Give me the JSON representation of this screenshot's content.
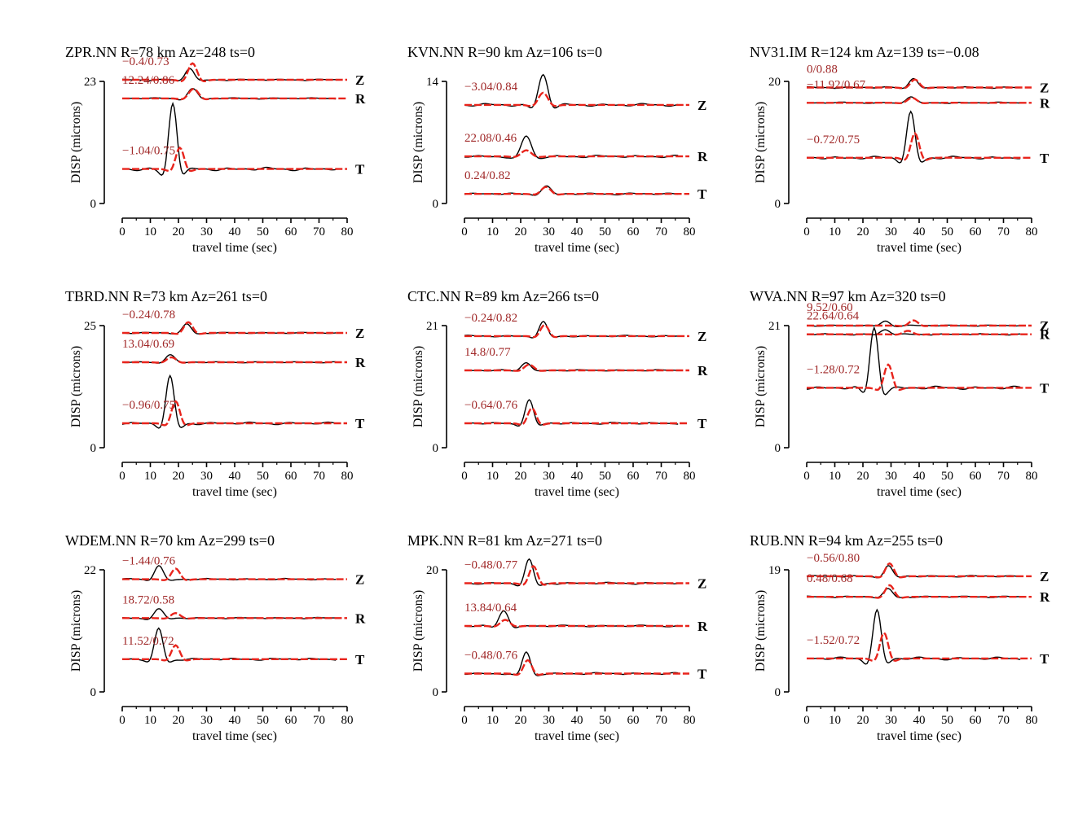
{
  "chart_data": [
    {
      "type": "line",
      "title": "ZPR.NN R=78 km Az=248 ts=0",
      "xlabel": "travel time (sec)",
      "ylabel": "DISP (microns)",
      "xlim": [
        0,
        80
      ],
      "xticks": [
        0,
        10,
        20,
        30,
        40,
        50,
        60,
        70,
        80
      ],
      "ylim": [
        0,
        23
      ],
      "yticks": [
        "0",
        "23"
      ],
      "series_colors": {
        "observed": "#000000",
        "synthetic": "#e8241c"
      },
      "traces": [
        {
          "component": "Z",
          "label": "−0.4/0.73",
          "baseline": 23.3,
          "peak_time": 24,
          "obs_amp": 2.2,
          "syn_amp": 3.1,
          "syn_shift": 1.0,
          "width": 3.2
        },
        {
          "component": "R",
          "label": "12.24/0.86",
          "baseline": 19.8,
          "peak_time": 25,
          "obs_amp": 1.8,
          "syn_amp": 1.8,
          "syn_shift": 0.4,
          "width": 3.5
        },
        {
          "component": "T",
          "label": "−1.04/0.75",
          "baseline": 6.5,
          "peak_time": 18,
          "obs_amp": 12.5,
          "syn_amp": 4.0,
          "syn_shift": 2.5,
          "width": 3.0
        }
      ]
    },
    {
      "type": "line",
      "title": "KVN.NN R=90 km Az=106 ts=0",
      "xlabel": "travel time (sec)",
      "ylabel": "DISP (microns)",
      "xlim": [
        0,
        80
      ],
      "xticks": [
        0,
        10,
        20,
        30,
        40,
        50,
        60,
        70,
        80
      ],
      "ylim": [
        0,
        14
      ],
      "yticks": [
        "0",
        "14"
      ],
      "series_colors": {
        "observed": "#000000",
        "synthetic": "#e8241c"
      },
      "traces": [
        {
          "component": "Z",
          "label": "−3.04/0.84",
          "baseline": 11.3,
          "peak_time": 28,
          "obs_amp": 3.5,
          "syn_amp": 1.4,
          "syn_shift": 0,
          "width": 3.4
        },
        {
          "component": "R",
          "label": "22.08/0.46",
          "baseline": 5.4,
          "peak_time": 22,
          "obs_amp": 2.3,
          "syn_amp": 0.7,
          "syn_shift": 0,
          "width": 3.6
        },
        {
          "component": "T",
          "label": "0.24/0.82",
          "baseline": 1.1,
          "peak_time": 29,
          "obs_amp": 0.9,
          "syn_amp": 0.8,
          "syn_shift": 0,
          "width": 3.4
        }
      ]
    },
    {
      "type": "line",
      "title": "NV31.IM R=124 km Az=139 ts=−0.08",
      "xlabel": "travel time (sec)",
      "ylabel": "DISP (microns)",
      "xlim": [
        0,
        80
      ],
      "xticks": [
        0,
        10,
        20,
        30,
        40,
        50,
        60,
        70,
        80
      ],
      "ylim": [
        0,
        20
      ],
      "yticks": [
        "0",
        "20"
      ],
      "series_colors": {
        "observed": "#000000",
        "synthetic": "#e8241c"
      },
      "traces": [
        {
          "component": "Z",
          "label": "0/0.88",
          "baseline": 19.0,
          "peak_time": 38,
          "obs_amp": 1.6,
          "syn_amp": 1.3,
          "syn_shift": 0.5,
          "width": 3.2
        },
        {
          "component": "R",
          "label": "−11.92/0.67",
          "baseline": 16.5,
          "peak_time": 37,
          "obs_amp": 1.0,
          "syn_amp": 0.8,
          "syn_shift": 0.5,
          "width": 3.4
        },
        {
          "component": "T",
          "label": "−0.72/0.75",
          "baseline": 7.5,
          "peak_time": 37,
          "obs_amp": 7.5,
          "syn_amp": 4.0,
          "syn_shift": 1.5,
          "width": 3.0
        }
      ]
    },
    {
      "type": "line",
      "title": "TBRD.NN R=73 km Az=261 ts=0",
      "xlabel": "travel time (sec)",
      "ylabel": "DISP (microns)",
      "xlim": [
        0,
        80
      ],
      "xticks": [
        0,
        10,
        20,
        30,
        40,
        50,
        60,
        70,
        80
      ],
      "ylim": [
        0,
        25
      ],
      "yticks": [
        "0",
        "25"
      ],
      "series_colors": {
        "observed": "#000000",
        "synthetic": "#e8241c"
      },
      "traces": [
        {
          "component": "Z",
          "label": "−0.24/0.78",
          "baseline": 23.5,
          "peak_time": 23,
          "obs_amp": 1.8,
          "syn_amp": 2.2,
          "syn_shift": 0.5,
          "width": 3.2
        },
        {
          "component": "R",
          "label": "13.04/0.69",
          "baseline": 17.5,
          "peak_time": 17,
          "obs_amp": 1.6,
          "syn_amp": 1.0,
          "syn_shift": 0.5,
          "width": 3.4
        },
        {
          "component": "T",
          "label": "−0.96/0.75",
          "baseline": 5.0,
          "peak_time": 17,
          "obs_amp": 9.5,
          "syn_amp": 4.5,
          "syn_shift": 2.0,
          "width": 3.0
        }
      ]
    },
    {
      "type": "line",
      "title": "CTC.NN R=89 km Az=266 ts=0",
      "xlabel": "travel time (sec)",
      "ylabel": "DISP (microns)",
      "xlim": [
        0,
        80
      ],
      "xticks": [
        0,
        10,
        20,
        30,
        40,
        50,
        60,
        70,
        80
      ],
      "ylim": [
        0,
        21
      ],
      "yticks": [
        "0",
        "21"
      ],
      "series_colors": {
        "observed": "#000000",
        "synthetic": "#e8241c"
      },
      "traces": [
        {
          "component": "Z",
          "label": "−0.24/0.82",
          "baseline": 19.2,
          "peak_time": 28,
          "obs_amp": 2.4,
          "syn_amp": 1.9,
          "syn_shift": 0.5,
          "width": 3.0
        },
        {
          "component": "R",
          "label": "14.8/0.77",
          "baseline": 13.3,
          "peak_time": 22,
          "obs_amp": 1.4,
          "syn_amp": 1.0,
          "syn_shift": 1.0,
          "width": 3.4
        },
        {
          "component": "T",
          "label": "−0.64/0.76",
          "baseline": 4.2,
          "peak_time": 23,
          "obs_amp": 4.0,
          "syn_amp": 2.6,
          "syn_shift": 1.0,
          "width": 3.0
        }
      ]
    },
    {
      "type": "line",
      "title": "WVA.NN R=97 km Az=320 ts=0",
      "xlabel": "travel time (sec)",
      "ylabel": "DISP (microns)",
      "xlim": [
        0,
        80
      ],
      "xticks": [
        0,
        10,
        20,
        30,
        40,
        50,
        60,
        70,
        80
      ],
      "ylim": [
        0,
        21
      ],
      "yticks": [
        "0",
        "21"
      ],
      "series_colors": {
        "observed": "#000000",
        "synthetic": "#e8241c"
      },
      "traces": [
        {
          "component": "Z",
          "label": "9.52/0.60",
          "baseline": 21.0,
          "peak_time": 28,
          "obs_amp": 0.8,
          "syn_amp": 0.9,
          "syn_shift": 10,
          "width": 3.2
        },
        {
          "component": "R",
          "label": "22.64/0.64",
          "baseline": 19.5,
          "peak_time": 28,
          "obs_amp": 0.8,
          "syn_amp": 0.6,
          "syn_shift": 8,
          "width": 3.4
        },
        {
          "component": "T",
          "label": "−1.28/0.72",
          "baseline": 10.3,
          "peak_time": 24,
          "obs_amp": 10.3,
          "syn_amp": 4.0,
          "syn_shift": 5,
          "width": 3.0
        }
      ]
    },
    {
      "type": "line",
      "title": "WDEM.NN R=70 km Az=299 ts=0",
      "xlabel": "travel time (sec)",
      "ylabel": "DISP (microns)",
      "xlim": [
        0,
        80
      ],
      "xticks": [
        0,
        10,
        20,
        30,
        40,
        50,
        60,
        70,
        80
      ],
      "ylim": [
        0,
        22
      ],
      "yticks": [
        "0",
        "22"
      ],
      "series_colors": {
        "observed": "#000000",
        "synthetic": "#e8241c"
      },
      "traces": [
        {
          "component": "Z",
          "label": "−1.44/0.76",
          "baseline": 20.3,
          "peak_time": 13,
          "obs_amp": 2.5,
          "syn_amp": 1.9,
          "syn_shift": 6,
          "width": 3.2
        },
        {
          "component": "R",
          "label": "18.72/0.58",
          "baseline": 13.3,
          "peak_time": 13,
          "obs_amp": 1.6,
          "syn_amp": 0.9,
          "syn_shift": 6,
          "width": 3.4
        },
        {
          "component": "T",
          "label": "11.52/0.72",
          "baseline": 5.9,
          "peak_time": 13,
          "obs_amp": 5.5,
          "syn_amp": 2.5,
          "syn_shift": 6,
          "width": 3.0
        }
      ]
    },
    {
      "type": "line",
      "title": "MPK.NN R=81 km Az=271 ts=0",
      "xlabel": "travel time (sec)",
      "ylabel": "DISP (microns)",
      "xlim": [
        0,
        80
      ],
      "xticks": [
        0,
        10,
        20,
        30,
        40,
        50,
        60,
        70,
        80
      ],
      "ylim": [
        0,
        20
      ],
      "yticks": [
        "0",
        "20"
      ],
      "series_colors": {
        "observed": "#000000",
        "synthetic": "#e8241c"
      },
      "traces": [
        {
          "component": "Z",
          "label": "−0.48/0.77",
          "baseline": 17.8,
          "peak_time": 23,
          "obs_amp": 3.8,
          "syn_amp": 2.8,
          "syn_shift": 1.5,
          "width": 3.0
        },
        {
          "component": "R",
          "label": "13.84/0.64",
          "baseline": 10.8,
          "peak_time": 14,
          "obs_amp": 2.5,
          "syn_amp": 1.0,
          "syn_shift": 0.5,
          "width": 3.4
        },
        {
          "component": "T",
          "label": "−0.48/0.76",
          "baseline": 3.0,
          "peak_time": 22,
          "obs_amp": 3.5,
          "syn_amp": 2.2,
          "syn_shift": 0.5,
          "width": 3.0
        }
      ]
    },
    {
      "type": "line",
      "title": "RUB.NN R=94 km Az=255 ts=0",
      "xlabel": "travel time (sec)",
      "ylabel": "DISP (microns)",
      "xlim": [
        0,
        80
      ],
      "xticks": [
        0,
        10,
        20,
        30,
        40,
        50,
        60,
        70,
        80
      ],
      "ylim": [
        0,
        19
      ],
      "yticks": [
        "0",
        "19"
      ],
      "series_colors": {
        "observed": "#000000",
        "synthetic": "#e8241c"
      },
      "traces": [
        {
          "component": "Z",
          "label": "−0.56/0.80",
          "baseline": 18.0,
          "peak_time": 29,
          "obs_amp": 1.6,
          "syn_amp": 2.0,
          "syn_shift": 0.5,
          "width": 3.0
        },
        {
          "component": "R",
          "label": "0.48/0.68",
          "baseline": 14.8,
          "peak_time": 29,
          "obs_amp": 1.2,
          "syn_amp": 1.8,
          "syn_shift": 0.5,
          "width": 3.2
        },
        {
          "component": "T",
          "label": "−1.52/0.72",
          "baseline": 5.2,
          "peak_time": 25,
          "obs_amp": 7.5,
          "syn_amp": 4.0,
          "syn_shift": 2.5,
          "width": 3.0
        }
      ]
    }
  ]
}
